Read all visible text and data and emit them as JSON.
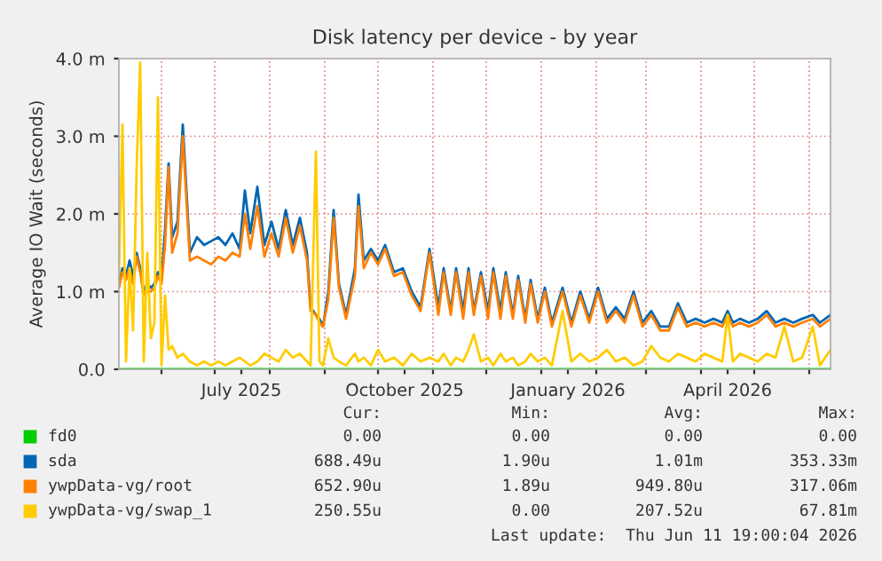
{
  "chart_data": {
    "type": "line",
    "title": "Disk latency per device - by year",
    "ylabel": "Average IO Wait (seconds)",
    "x": [
      "2025-05-08",
      "2025-05-10",
      "2025-05-12",
      "2025-05-14",
      "2025-05-16",
      "2025-05-18",
      "2025-05-20",
      "2025-05-22",
      "2025-05-24",
      "2025-05-26",
      "2025-05-28",
      "2025-05-30",
      "2025-06-01",
      "2025-06-03",
      "2025-06-05",
      "2025-06-07",
      "2025-06-10",
      "2025-06-13",
      "2025-06-17",
      "2025-06-21",
      "2025-06-25",
      "2025-06-29",
      "2025-07-03",
      "2025-07-07",
      "2025-07-11",
      "2025-07-15",
      "2025-07-18",
      "2025-07-21",
      "2025-07-25",
      "2025-07-29",
      "2025-08-02",
      "2025-08-06",
      "2025-08-10",
      "2025-08-14",
      "2025-08-18",
      "2025-08-22",
      "2025-08-24",
      "2025-08-27",
      "2025-08-29",
      "2025-08-31",
      "2025-09-03",
      "2025-09-06",
      "2025-09-09",
      "2025-09-13",
      "2025-09-18",
      "2025-09-20",
      "2025-09-23",
      "2025-09-27",
      "2025-10-01",
      "2025-10-05",
      "2025-10-10",
      "2025-10-15",
      "2025-10-20",
      "2025-10-25",
      "2025-10-30",
      "2025-11-04",
      "2025-11-07",
      "2025-11-11",
      "2025-11-14",
      "2025-11-18",
      "2025-11-21",
      "2025-11-24",
      "2025-11-28",
      "2025-12-02",
      "2025-12-05",
      "2025-12-09",
      "2025-12-12",
      "2025-12-16",
      "2025-12-19",
      "2025-12-23",
      "2025-12-26",
      "2025-12-30",
      "2026-01-03",
      "2026-01-07",
      "2026-01-13",
      "2026-01-18",
      "2026-01-23",
      "2026-01-28",
      "2026-02-02",
      "2026-02-07",
      "2026-02-12",
      "2026-02-17",
      "2026-02-22",
      "2026-02-27",
      "2026-03-04",
      "2026-03-09",
      "2026-03-14",
      "2026-03-19",
      "2026-03-24",
      "2026-03-29",
      "2026-04-03",
      "2026-04-08",
      "2026-04-13",
      "2026-04-16",
      "2026-04-19",
      "2026-04-23",
      "2026-04-28",
      "2026-05-03",
      "2026-05-08",
      "2026-05-13",
      "2026-05-18",
      "2026-05-23",
      "2026-05-28",
      "2026-06-03",
      "2026-06-07",
      "2026-06-13"
    ],
    "series": [
      {
        "name": "fd0",
        "color": "#00cc00",
        "values": [
          0,
          0,
          0,
          0,
          0,
          0,
          0,
          0,
          0,
          0,
          0,
          0,
          0,
          0,
          0,
          0,
          0,
          0,
          0,
          0,
          0,
          0,
          0,
          0,
          0,
          0,
          0,
          0,
          0,
          0,
          0,
          0,
          0,
          0,
          0,
          0,
          0,
          0,
          0,
          0,
          0,
          0,
          0,
          0,
          0,
          0,
          0,
          0,
          0,
          0,
          0,
          0,
          0,
          0,
          0,
          0,
          0,
          0,
          0,
          0,
          0,
          0,
          0,
          0,
          0,
          0,
          0,
          0,
          0,
          0,
          0,
          0,
          0,
          0,
          0,
          0,
          0,
          0,
          0,
          0,
          0,
          0,
          0,
          0,
          0,
          0,
          0,
          0,
          0,
          0,
          0,
          0,
          0,
          0,
          0,
          0,
          0,
          0,
          0,
          0,
          0,
          0,
          0,
          0,
          0,
          0
        ]
      },
      {
        "name": "sda",
        "color": "#0066b3",
        "values": [
          1.1,
          1.3,
          1.2,
          1.4,
          1.2,
          1.5,
          1.3,
          1.0,
          1.1,
          1.05,
          1.1,
          1.25,
          1.15,
          1.8,
          2.65,
          1.7,
          1.9,
          3.15,
          1.5,
          1.7,
          1.6,
          1.65,
          1.7,
          1.6,
          1.75,
          1.55,
          2.3,
          1.75,
          2.35,
          1.6,
          1.9,
          1.55,
          2.05,
          1.6,
          1.95,
          1.5,
          0.8,
          0.7,
          0.65,
          0.55,
          1.0,
          2.05,
          1.1,
          0.7,
          1.3,
          2.25,
          1.4,
          1.55,
          1.4,
          1.6,
          1.25,
          1.3,
          1.0,
          0.8,
          1.55,
          0.8,
          1.3,
          0.75,
          1.3,
          0.75,
          1.3,
          0.75,
          1.25,
          0.75,
          1.3,
          0.75,
          1.25,
          0.7,
          1.2,
          0.65,
          1.15,
          0.65,
          1.05,
          0.6,
          1.05,
          0.6,
          1.0,
          0.65,
          1.05,
          0.65,
          0.8,
          0.65,
          1.0,
          0.6,
          0.75,
          0.55,
          0.55,
          0.85,
          0.6,
          0.65,
          0.6,
          0.65,
          0.6,
          0.75,
          0.6,
          0.65,
          0.6,
          0.65,
          0.75,
          0.6,
          0.65,
          0.6,
          0.65,
          0.7,
          0.6,
          0.7
        ]
      },
      {
        "name": "ywpData-vg/root",
        "color": "#ff8000",
        "values": [
          1.05,
          1.25,
          1.15,
          1.3,
          1.1,
          1.45,
          1.25,
          0.95,
          1.0,
          1.0,
          1.05,
          1.2,
          1.1,
          1.6,
          2.6,
          1.5,
          1.75,
          3.0,
          1.4,
          1.45,
          1.4,
          1.35,
          1.45,
          1.4,
          1.5,
          1.45,
          2.0,
          1.55,
          2.1,
          1.45,
          1.75,
          1.45,
          1.95,
          1.5,
          1.85,
          1.4,
          0.75,
          0.7,
          0.6,
          0.55,
          0.9,
          1.95,
          1.05,
          0.65,
          1.2,
          2.1,
          1.3,
          1.5,
          1.35,
          1.55,
          1.2,
          1.25,
          0.95,
          0.75,
          1.5,
          0.7,
          1.25,
          0.7,
          1.25,
          0.65,
          1.25,
          0.7,
          1.2,
          0.65,
          1.25,
          0.65,
          1.2,
          0.65,
          1.15,
          0.6,
          1.1,
          0.6,
          1.0,
          0.55,
          1.0,
          0.55,
          0.95,
          0.6,
          1.0,
          0.6,
          0.75,
          0.6,
          0.95,
          0.55,
          0.7,
          0.5,
          0.5,
          0.8,
          0.55,
          0.6,
          0.55,
          0.6,
          0.55,
          0.7,
          0.55,
          0.6,
          0.55,
          0.6,
          0.7,
          0.55,
          0.6,
          0.55,
          0.6,
          0.65,
          0.55,
          0.65
        ]
      },
      {
        "name": "ywpData-vg/swap_1",
        "color": "#ffcc00",
        "values": [
          1.2,
          3.15,
          0.1,
          1.3,
          0.5,
          2.6,
          3.95,
          0.1,
          1.5,
          0.4,
          0.6,
          3.5,
          0.05,
          0.95,
          0.25,
          0.3,
          0.15,
          0.2,
          0.1,
          0.05,
          0.1,
          0.05,
          0.1,
          0.05,
          0.1,
          0.15,
          0.1,
          0.05,
          0.1,
          0.2,
          0.15,
          0.1,
          0.25,
          0.15,
          0.2,
          0.1,
          0.05,
          2.8,
          0.1,
          0.05,
          0.4,
          0.15,
          0.1,
          0.05,
          0.2,
          0.1,
          0.15,
          0.05,
          0.25,
          0.1,
          0.15,
          0.05,
          0.2,
          0.1,
          0.15,
          0.1,
          0.2,
          0.05,
          0.15,
          0.1,
          0.25,
          0.45,
          0.1,
          0.15,
          0.05,
          0.2,
          0.1,
          0.15,
          0.05,
          0.1,
          0.2,
          0.1,
          0.15,
          0.05,
          0.75,
          0.1,
          0.2,
          0.1,
          0.15,
          0.25,
          0.1,
          0.15,
          0.05,
          0.1,
          0.3,
          0.15,
          0.1,
          0.2,
          0.15,
          0.1,
          0.2,
          0.15,
          0.1,
          0.7,
          0.1,
          0.2,
          0.15,
          0.1,
          0.2,
          0.15,
          0.55,
          0.1,
          0.15,
          0.55,
          0.05,
          0.25
        ]
      }
    ],
    "xlim": [
      "2025-05-08",
      "2026-06-13"
    ],
    "xticks": [
      {
        "value": "2025-06-01",
        "label": null
      },
      {
        "value": "2025-07-01",
        "label": null
      },
      {
        "value": "2025-07-16",
        "label": "July 2025"
      },
      {
        "value": "2025-08-01",
        "label": null
      },
      {
        "value": "2025-09-01",
        "label": null
      },
      {
        "value": "2025-10-01",
        "label": null
      },
      {
        "value": "2025-10-16",
        "label": "October 2025"
      },
      {
        "value": "2025-11-01",
        "label": null
      },
      {
        "value": "2025-12-01",
        "label": null
      },
      {
        "value": "2026-01-01",
        "label": null
      },
      {
        "value": "2026-01-16",
        "label": "January 2026"
      },
      {
        "value": "2026-02-01",
        "label": null
      },
      {
        "value": "2026-03-01",
        "label": null
      },
      {
        "value": "2026-04-01",
        "label": null
      },
      {
        "value": "2026-04-16",
        "label": "April 2026"
      },
      {
        "value": "2026-05-01",
        "label": null
      },
      {
        "value": "2026-06-01",
        "label": null
      }
    ],
    "ylim": [
      0,
      4
    ],
    "yticks": [
      {
        "value": 0,
        "label": "0.0"
      },
      {
        "value": 1,
        "label": "1.0 m"
      },
      {
        "value": 2,
        "label": "2.0 m"
      },
      {
        "value": 3,
        "label": "3.0 m"
      },
      {
        "value": 4,
        "label": "4.0 m"
      }
    ],
    "grid": true,
    "legend": "bottom",
    "annotations": [
      "Cur:",
      "Min:",
      "Avg:",
      "Max:",
      "0.00",
      "0.00",
      "0.00",
      "0.00",
      "688.49u",
      "1.90u",
      "1.01m",
      "353.33m",
      "652.90u",
      "1.89u",
      "949.80u",
      "317.06m",
      "250.55u",
      "0.00",
      "207.52u",
      "67.81m",
      "Last update:  Thu Jun 11 19:00:04 2026"
    ]
  }
}
